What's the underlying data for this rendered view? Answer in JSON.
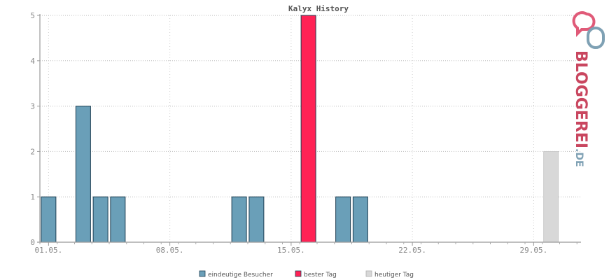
{
  "chart_data": {
    "type": "bar",
    "title": "Kalyx History",
    "xlabel": "",
    "ylabel": "",
    "ylim": [
      0,
      5
    ],
    "yticks": [
      0,
      1,
      2,
      3,
      4,
      5
    ],
    "grid": true,
    "legend_position": "bottom",
    "x_tick_labels": [
      {
        "label": "01.05.",
        "day": 1
      },
      {
        "label": "08.05.",
        "day": 8
      },
      {
        "label": "15.05.",
        "day": 15
      },
      {
        "label": "22.05.",
        "day": 22
      },
      {
        "label": "29.05.",
        "day": 29
      }
    ],
    "series": [
      {
        "name": "eindeutige Besucher",
        "color": "#6a9fb8",
        "points": [
          {
            "day": 1,
            "value": 1
          },
          {
            "day": 3,
            "value": 3
          },
          {
            "day": 4,
            "value": 1
          },
          {
            "day": 5,
            "value": 1
          },
          {
            "day": 12,
            "value": 1
          },
          {
            "day": 13,
            "value": 1
          },
          {
            "day": 18,
            "value": 1
          },
          {
            "day": 19,
            "value": 1
          }
        ]
      },
      {
        "name": "bester Tag",
        "color": "#ff2255",
        "points": [
          {
            "day": 16,
            "value": 5
          }
        ]
      },
      {
        "name": "heutiger Tag",
        "color": "#d8d8d8",
        "points": [
          {
            "day": 30,
            "value": 2
          }
        ]
      }
    ]
  },
  "logo": {
    "text": "BLOGGEREI.DE",
    "main": "BLOGGEREI",
    "suffix": ".DE",
    "colors": {
      "pink": "#e05a78",
      "blue": "#7fa1b4",
      "dark": "#4a5560"
    }
  }
}
